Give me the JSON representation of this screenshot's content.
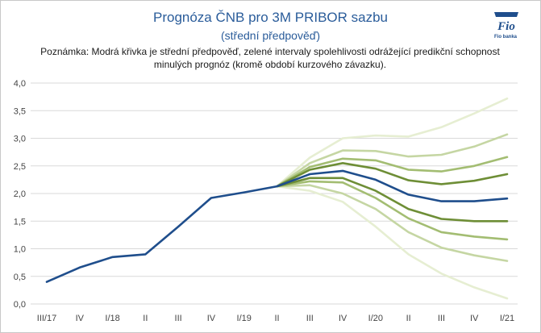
{
  "title": "Prognóza ČNB pro 3M PRIBOR sazbu",
  "subtitle": "(střední předpověď)",
  "note": "Poznámka: Modrá křivka je střední předpověď, zelené intervaly spolehlivosti odrážející predikční schopnost minulých prognóz (kromě období kurzového závazku).",
  "logo": {
    "text": "Fio",
    "caption": "Fio banka",
    "color": "#1f4e8c"
  },
  "chart_data": {
    "type": "line",
    "categories": [
      "III/17",
      "IV",
      "I/18",
      "II",
      "III",
      "IV",
      "I/19",
      "II",
      "III",
      "IV",
      "I/20",
      "II",
      "III",
      "IV",
      "I/21"
    ],
    "y_ticks": [
      "0,0",
      "0,5",
      "1,0",
      "1,5",
      "2,0",
      "2,5",
      "3,0",
      "3,5",
      "4,0"
    ],
    "ylim": [
      0,
      4
    ],
    "grid": true,
    "series": [
      {
        "role": "band-outer",
        "color": "#e6eed2",
        "values": [
          null,
          null,
          null,
          null,
          null,
          null,
          null,
          2.13,
          2.65,
          3.0,
          3.05,
          3.03,
          3.2,
          3.45,
          3.72
        ]
      },
      {
        "role": "band-outer",
        "color": "#e6eed2",
        "values": [
          null,
          null,
          null,
          null,
          null,
          null,
          null,
          2.13,
          2.05,
          1.85,
          1.4,
          0.9,
          0.55,
          0.3,
          0.1
        ]
      },
      {
        "role": "band-middle",
        "color": "#c5d6a3",
        "values": [
          null,
          null,
          null,
          null,
          null,
          null,
          null,
          2.13,
          2.55,
          2.78,
          2.77,
          2.67,
          2.7,
          2.85,
          3.07
        ]
      },
      {
        "role": "band-middle",
        "color": "#c5d6a3",
        "values": [
          null,
          null,
          null,
          null,
          null,
          null,
          null,
          2.13,
          2.15,
          2.0,
          1.72,
          1.3,
          1.02,
          0.88,
          0.78
        ]
      },
      {
        "role": "band-inner",
        "color": "#a3bd72",
        "values": [
          null,
          null,
          null,
          null,
          null,
          null,
          null,
          2.13,
          2.48,
          2.63,
          2.6,
          2.43,
          2.4,
          2.5,
          2.66
        ]
      },
      {
        "role": "band-inner",
        "color": "#a3bd72",
        "values": [
          null,
          null,
          null,
          null,
          null,
          null,
          null,
          2.13,
          2.22,
          2.2,
          1.92,
          1.55,
          1.3,
          1.22,
          1.17
        ]
      },
      {
        "role": "band-core",
        "color": "#6e8e36",
        "values": [
          null,
          null,
          null,
          null,
          null,
          null,
          null,
          2.13,
          2.43,
          2.55,
          2.45,
          2.24,
          2.17,
          2.23,
          2.35
        ]
      },
      {
        "role": "band-core",
        "color": "#6e8e36",
        "values": [
          null,
          null,
          null,
          null,
          null,
          null,
          null,
          2.13,
          2.28,
          2.28,
          2.05,
          1.72,
          1.54,
          1.5,
          1.5
        ]
      },
      {
        "role": "central",
        "color": "#1f4e8c",
        "values": [
          0.4,
          0.66,
          0.85,
          0.9,
          1.4,
          1.92,
          2.02,
          2.13,
          2.35,
          2.41,
          2.25,
          1.98,
          1.86,
          1.86,
          1.91
        ]
      }
    ]
  }
}
